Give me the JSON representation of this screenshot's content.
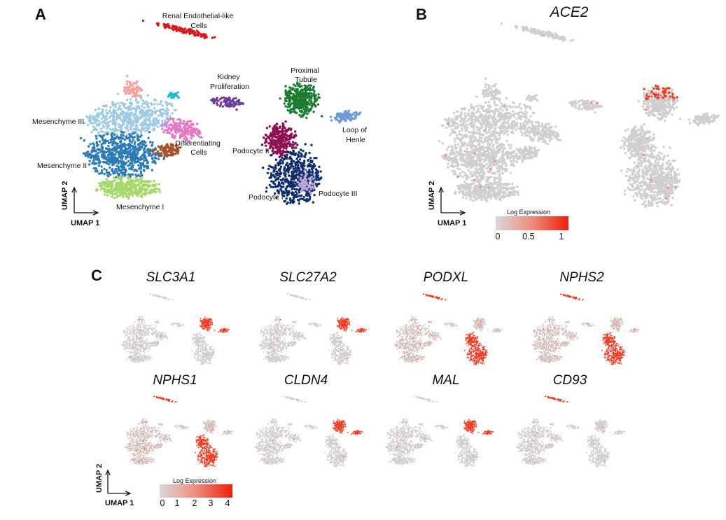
{
  "panels": {
    "A": {
      "letter": "A",
      "clusters": [
        {
          "id": "renal",
          "label_lines": [
            "Renal Endothelial-like",
            "Cells"
          ],
          "color": "#d7191c"
        },
        {
          "id": "kidney-prolif",
          "label_lines": [
            "Kidney",
            "Proliferation"
          ],
          "color": "#6a3d9a"
        },
        {
          "id": "proximal",
          "label_lines": [
            "Proximal",
            "Tubule"
          ],
          "color": "#1b7b2e"
        },
        {
          "id": "mes3",
          "label_lines": [
            "Mesenchyme III"
          ],
          "color": "#9ecae1"
        },
        {
          "id": "differentiating",
          "label_lines": [
            "Differentiating",
            "Cells"
          ],
          "color": "#a6522b"
        },
        {
          "id": "mes2",
          "label_lines": [
            "Mesenchyme II"
          ],
          "color": "#2c7bb6"
        },
        {
          "id": "mes1",
          "label_lines": [
            "Mesenchyme I"
          ],
          "color": "#a6d96a"
        },
        {
          "id": "loop",
          "label_lines": [
            "Loop of",
            "Henle"
          ],
          "color": "#6a9bd8"
        },
        {
          "id": "pod2",
          "label_lines": [
            "Podocyte II"
          ],
          "color": "#8c1050"
        },
        {
          "id": "pod1",
          "label_lines": [
            "Podocyte I"
          ],
          "color": "#0f2e6b"
        },
        {
          "id": "pod3",
          "label_lines": [
            "Podocyte III"
          ],
          "color": "#b9a6d6"
        }
      ],
      "extra_colors": {
        "salmon": "#f4a09c",
        "pink": "#e377c2",
        "teal": "#17becf"
      },
      "axis": {
        "x": "UMAP 1",
        "y": "UMAP 2"
      }
    },
    "B": {
      "letter": "B",
      "gene": "ACE2",
      "axis": {
        "x": "UMAP 1",
        "y": "UMAP 2"
      },
      "legend": {
        "title": "Log Expression",
        "ticks": [
          "0",
          "0.5",
          "1"
        ]
      }
    },
    "C": {
      "letter": "C",
      "genes": [
        {
          "name": "SLC3A1",
          "pattern": "proximal"
        },
        {
          "name": "SLC27A2",
          "pattern": "proximal"
        },
        {
          "name": "PODXL",
          "pattern": "podocyte"
        },
        {
          "name": "NPHS2",
          "pattern": "podocyte"
        },
        {
          "name": "NPHS1",
          "pattern": "podocyte"
        },
        {
          "name": "CLDN4",
          "pattern": "loop"
        },
        {
          "name": "MAL",
          "pattern": "loop"
        },
        {
          "name": "CD93",
          "pattern": "endothelial"
        }
      ],
      "axis": {
        "x": "UMAP 1",
        "y": "UMAP 2"
      },
      "legend": {
        "title": "Log Expression",
        "ticks": [
          "0",
          "1",
          "2",
          "3",
          "4"
        ]
      }
    }
  },
  "colors": {
    "grey": "#cfcfcf",
    "expr": "#ee3b22",
    "expr_light": "#f28a7a"
  }
}
